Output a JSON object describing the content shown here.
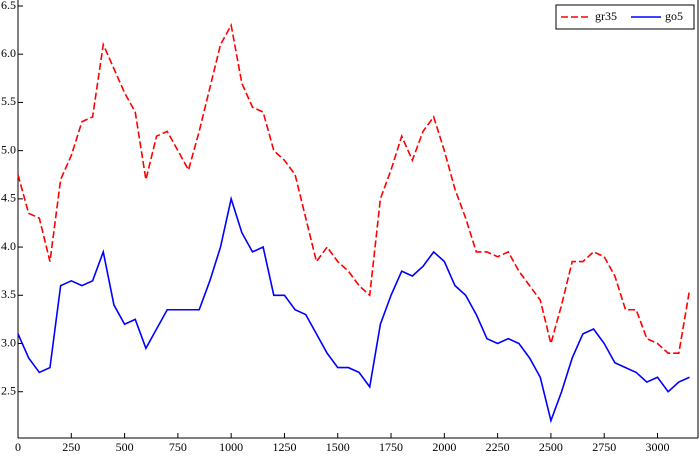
{
  "chart_data": {
    "type": "line",
    "x": [
      0,
      50,
      100,
      150,
      200,
      250,
      300,
      350,
      400,
      450,
      500,
      550,
      600,
      650,
      700,
      750,
      800,
      850,
      900,
      950,
      1000,
      1050,
      1100,
      1150,
      1200,
      1250,
      1300,
      1350,
      1400,
      1450,
      1500,
      1550,
      1600,
      1650,
      1700,
      1750,
      1800,
      1850,
      1900,
      1950,
      2000,
      2050,
      2100,
      2150,
      2200,
      2250,
      2300,
      2350,
      2400,
      2450,
      2500,
      2550,
      2600,
      2650,
      2700,
      2750,
      2800,
      2850,
      2900,
      2950,
      3000,
      3050,
      3100,
      3150
    ],
    "series": [
      {
        "name": "gr35",
        "color": "#ff0000",
        "dashed": true,
        "values": [
          4.75,
          4.35,
          4.3,
          3.85,
          4.7,
          4.95,
          5.3,
          5.35,
          6.1,
          5.85,
          5.6,
          5.4,
          4.7,
          5.15,
          5.2,
          5.0,
          4.8,
          5.2,
          5.65,
          6.1,
          6.3,
          5.7,
          5.45,
          5.4,
          5.0,
          4.9,
          4.75,
          4.3,
          3.85,
          4.0,
          3.85,
          3.75,
          3.6,
          3.5,
          4.5,
          4.8,
          5.15,
          4.9,
          5.2,
          5.35,
          5.0,
          4.6,
          4.3,
          3.95,
          3.95,
          3.9,
          3.95,
          3.75,
          3.6,
          3.45,
          3.0,
          3.4,
          3.85,
          3.85,
          3.95,
          3.9,
          3.7,
          3.35,
          3.35,
          3.05,
          3.0,
          2.9,
          2.9,
          3.55
        ]
      },
      {
        "name": "go5",
        "color": "#0000ff",
        "dashed": false,
        "values": [
          3.1,
          2.85,
          2.7,
          2.75,
          3.6,
          3.65,
          3.6,
          3.65,
          3.95,
          3.4,
          3.2,
          3.25,
          2.95,
          3.15,
          3.35,
          3.35,
          3.35,
          3.35,
          3.65,
          4.0,
          4.5,
          4.15,
          3.95,
          4.0,
          3.5,
          3.5,
          3.35,
          3.3,
          3.1,
          2.9,
          2.75,
          2.75,
          2.7,
          2.55,
          3.2,
          3.5,
          3.75,
          3.7,
          3.8,
          3.95,
          3.85,
          3.6,
          3.5,
          3.3,
          3.05,
          3.0,
          3.05,
          3.0,
          2.85,
          2.65,
          2.2,
          2.5,
          2.85,
          3.1,
          3.15,
          3.0,
          2.8,
          2.75,
          2.7,
          2.6,
          2.65,
          2.5,
          2.6,
          2.65
        ]
      }
    ],
    "xlim": [
      0,
      3190
    ],
    "xticks": [
      0,
      250,
      500,
      750,
      1000,
      1250,
      1500,
      1750,
      2000,
      2250,
      2500,
      2750,
      3000
    ],
    "ylim": [
      2.02,
      6.5
    ],
    "yticks": [
      2.5,
      {
        "value": 3,
        "label": "3.0"
      },
      3.5,
      {
        "value": 4,
        "label": "4.0"
      },
      4.5,
      {
        "value": 5,
        "label": "5.0"
      },
      5.5,
      {
        "value": 6,
        "label": "6.0"
      },
      6.5
    ],
    "legend": "upper right"
  }
}
